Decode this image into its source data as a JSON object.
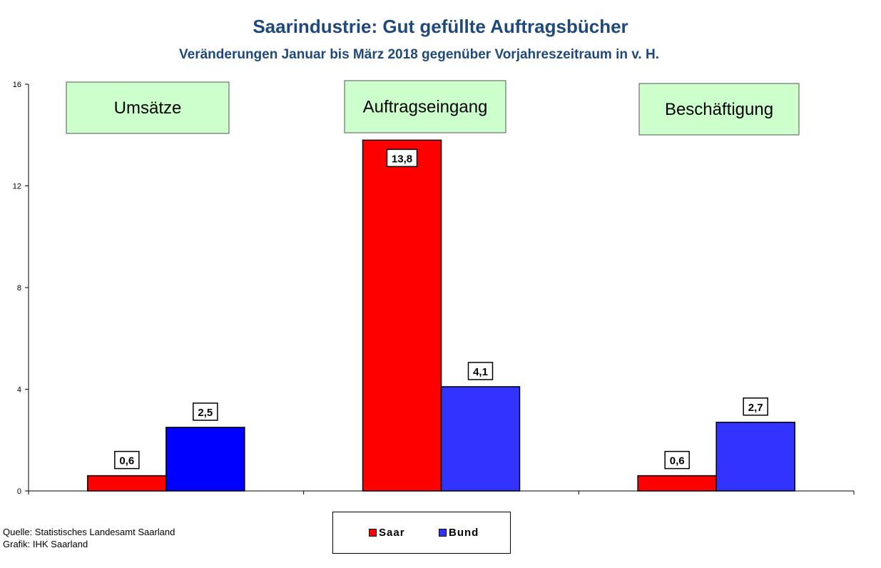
{
  "title": "Saarindustrie: Gut gefüllte Auftragsbücher",
  "subtitle": "Veränderungen  Januar bis März 2018  gegenüber Vorjahreszeitraum in v. H.",
  "source_lines": [
    "Quelle: Statistisches Landesamt Saarland",
    "Grafik: IHK Saarland"
  ],
  "chart_data": {
    "type": "bar",
    "title": "Saarindustrie: Gut gefüllte Auftragsbücher",
    "categories": [
      "Umsätze",
      "Auftragseingang",
      "Beschäftigung"
    ],
    "series": [
      {
        "name": "Saar",
        "values": [
          0.6,
          13.8,
          0.6
        ],
        "labels": [
          "0,6",
          "13,8",
          "0,6"
        ],
        "colors": [
          "#ff0000",
          "#ff0000",
          "#ff0000"
        ]
      },
      {
        "name": "Bund",
        "values": [
          2.5,
          4.1,
          2.7
        ],
        "labels": [
          "2,5",
          "4,1",
          "2,7"
        ],
        "colors": [
          "#0000ff",
          "#3333ff",
          "#3333ff"
        ]
      }
    ],
    "legend_colors": [
      "#ff0000",
      "#3333ff"
    ],
    "category_box_color": "#ccffcc",
    "yticks": [
      0,
      4,
      8,
      12,
      16
    ],
    "ylim": [
      0,
      16
    ],
    "xlabel": "",
    "ylabel": "",
    "legend_position": "bottom"
  }
}
